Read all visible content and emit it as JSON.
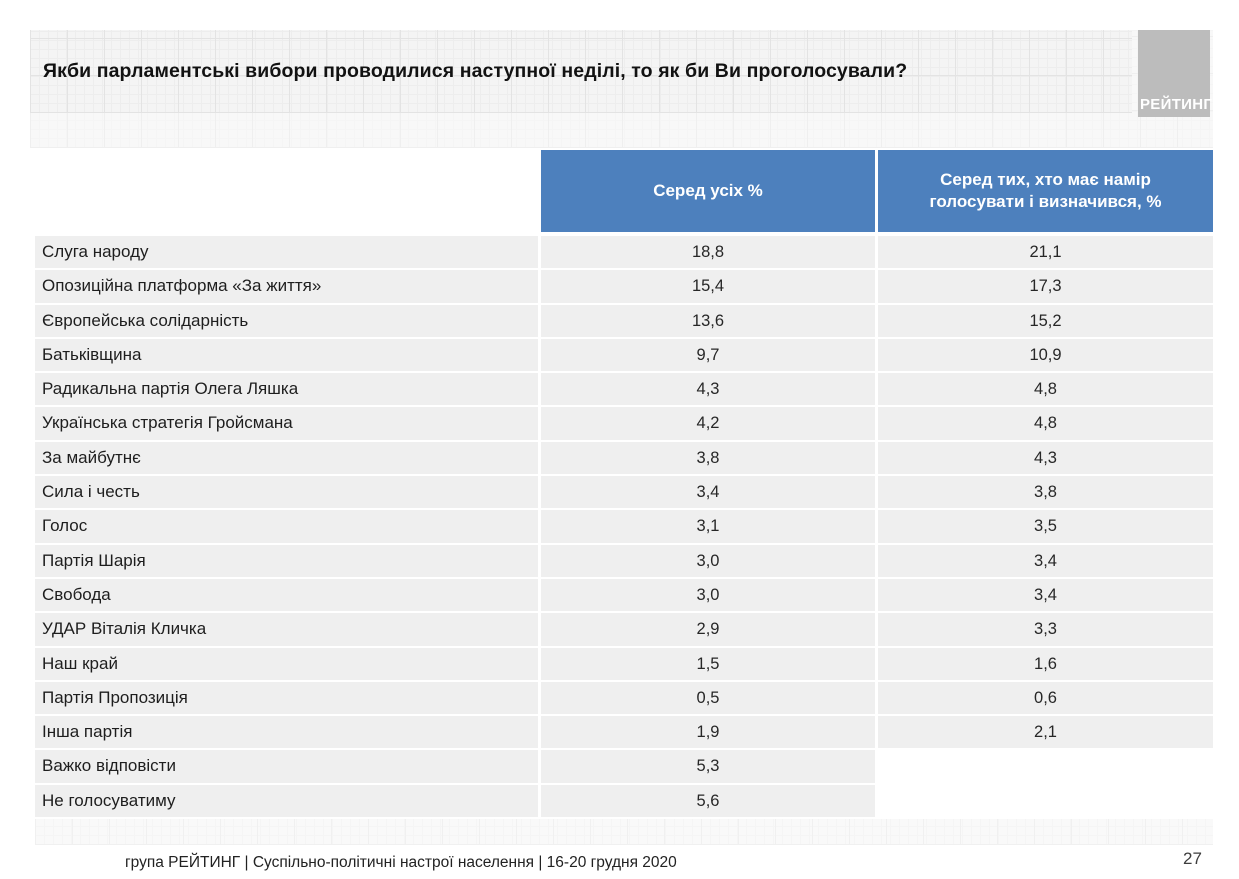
{
  "slide": {
    "logo_text": "РЕЙТИНГ",
    "footer": "група РЕЙТИНГ | Суспільно-політичні настрої населення | 16-20 грудня 2020",
    "page_number": "27"
  },
  "colors": {
    "header_blue": "#4d80bd",
    "row_gray": "#efefef",
    "logo_gray": "#bcbcbc"
  },
  "chart_data": {
    "type": "table",
    "title": "Якби парламентські вибори проводилися наступної неділі, то як би Ви проголосували?",
    "columns": [
      "Серед усіх %",
      "Серед тих, хто має намір голосувати і визначився, %"
    ],
    "rows": [
      {
        "label": "Слуга народу",
        "all": "18,8",
        "decided": "21,1"
      },
      {
        "label": "Опозиційна платформа «За життя»",
        "all": "15,4",
        "decided": "17,3"
      },
      {
        "label": "Європейська солідарність",
        "all": "13,6",
        "decided": "15,2"
      },
      {
        "label": "Батьківщина",
        "all": "9,7",
        "decided": "10,9"
      },
      {
        "label": "Радикальна партія Олега Ляшка",
        "all": "4,3",
        "decided": "4,8"
      },
      {
        "label": "Українська стратегія Гройсмана",
        "all": "4,2",
        "decided": "4,8"
      },
      {
        "label": "За майбутнє",
        "all": "3,8",
        "decided": "4,3"
      },
      {
        "label": "Сила і честь",
        "all": "3,4",
        "decided": "3,8"
      },
      {
        "label": "Голос",
        "all": "3,1",
        "decided": "3,5"
      },
      {
        "label": "Партія Шарія",
        "all": "3,0",
        "decided": "3,4"
      },
      {
        "label": "Свобода",
        "all": "3,0",
        "decided": "3,4"
      },
      {
        "label": "УДАР Віталія Кличка",
        "all": "2,9",
        "decided": "3,3"
      },
      {
        "label": "Наш край",
        "all": "1,5",
        "decided": "1,6"
      },
      {
        "label": "Партія Пропозиція",
        "all": "0,5",
        "decided": "0,6"
      },
      {
        "label": "Інша партія",
        "all": "1,9",
        "decided": "2,1"
      },
      {
        "label": "Важко відповісти",
        "all": "5,3",
        "decided": null
      },
      {
        "label": "Не голосуватиму",
        "all": "5,6",
        "decided": null
      }
    ]
  }
}
